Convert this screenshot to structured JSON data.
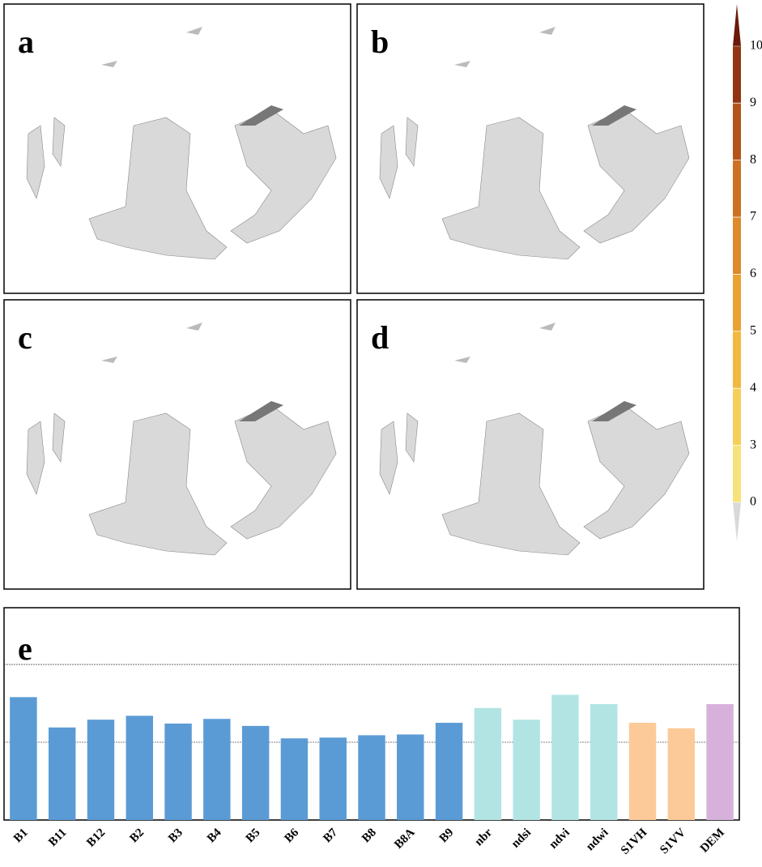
{
  "panels": [
    {
      "label": "a"
    },
    {
      "label": "b"
    },
    {
      "label": "c"
    },
    {
      "label": "d"
    }
  ],
  "colorbar": {
    "ticks": [
      0,
      3,
      4,
      5,
      6,
      7,
      8,
      9,
      10
    ]
  },
  "chart_data": {
    "type": "bar",
    "label": "e",
    "categories": [
      "B1",
      "B11",
      "B12",
      "B2",
      "B3",
      "B4",
      "B5",
      "B6",
      "B7",
      "B8",
      "B8A",
      "B9",
      "nbr",
      "ndsi",
      "ndvi",
      "ndwi",
      "S1VH",
      "S1VV",
      "DEM"
    ],
    "values": [
      1.58,
      1.19,
      1.29,
      1.34,
      1.24,
      1.3,
      1.21,
      1.05,
      1.06,
      1.09,
      1.1,
      1.25,
      1.44,
      1.29,
      1.61,
      1.49,
      1.25,
      1.18,
      1.49
    ],
    "colors": [
      "#5b9bd5",
      "#5b9bd5",
      "#5b9bd5",
      "#5b9bd5",
      "#5b9bd5",
      "#5b9bd5",
      "#5b9bd5",
      "#5b9bd5",
      "#5b9bd5",
      "#5b9bd5",
      "#5b9bd5",
      "#5b9bd5",
      "#b2e4e4",
      "#b2e4e4",
      "#b2e4e4",
      "#b2e4e4",
      "#fcca98",
      "#fcca98",
      "#d6b2da"
    ],
    "ylim": [
      0,
      2.73
    ],
    "yticks": [
      1,
      2
    ],
    "grid": true
  }
}
